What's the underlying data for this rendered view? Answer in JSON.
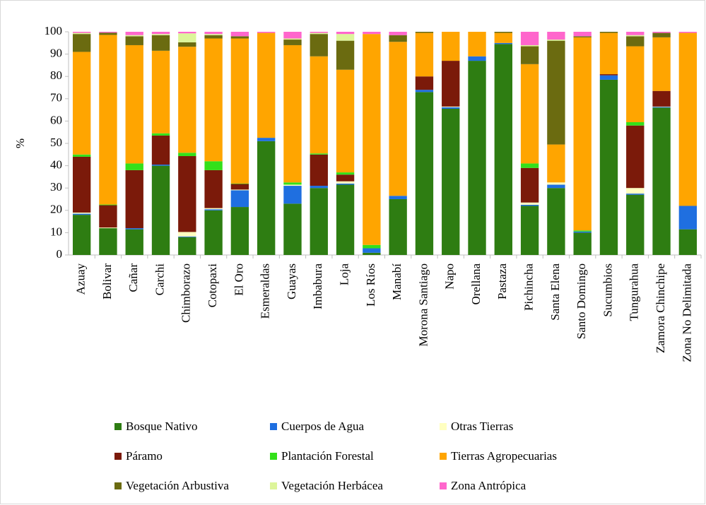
{
  "chart_data": {
    "type": "stacked-bar",
    "y_label": "%",
    "categories": [
      "Azuay",
      "Bolivar",
      "Cañar",
      "Carchi",
      "Chimborazo",
      "Cotopaxi",
      "El Oro",
      "Esmeraldas",
      "Guayas",
      "Imbabura",
      "Loja",
      "Los Ríos",
      "Manabí",
      "Morona Santiago",
      "Napo",
      "Orellana",
      "Pastaza",
      "Pichincha",
      "Santa Elena",
      "Santo Domingo",
      "Sucumbios",
      "Tungurahua",
      "Zamora Chinchipe",
      "Zona No Delimitada"
    ],
    "series": [
      {
        "name": "Bosque Nativo",
        "color": "#2e7d12",
        "values": [
          18,
          12,
          11.5,
          40,
          8,
          20,
          21.5,
          51,
          23,
          30,
          31.5,
          1,
          25,
          73,
          65.5,
          87,
          94.5,
          22,
          30,
          10,
          78.5,
          27,
          66,
          11.5
        ]
      },
      {
        "name": "Cuerpos de Agua",
        "color": "#1f6fe0",
        "values": [
          0.5,
          0,
          0.5,
          0.5,
          0.3,
          0.5,
          7.5,
          1.5,
          8,
          1,
          0.5,
          2,
          1.5,
          1,
          0.7,
          2,
          0.5,
          0.5,
          1.5,
          0.5,
          2,
          0.5,
          0.3,
          10.5
        ]
      },
      {
        "name": "Otras Tierras",
        "color": "#ffffc0",
        "values": [
          0.5,
          0.3,
          0,
          0,
          2,
          0.5,
          0.3,
          0,
          0.5,
          0,
          1,
          0,
          0,
          0,
          0.3,
          0,
          0,
          1,
          1,
          0,
          0,
          2.5,
          0.2,
          0
        ]
      },
      {
        "name": "Páramo",
        "color": "#7b1a0a",
        "values": [
          25,
          10,
          26,
          13,
          34,
          17,
          2.5,
          0,
          0,
          14,
          3,
          0,
          0,
          6,
          20.5,
          0,
          0,
          15.5,
          0,
          0,
          0.5,
          28,
          7,
          0
        ]
      },
      {
        "name": "Plantación Forestal",
        "color": "#33e01a",
        "values": [
          1,
          0.3,
          3,
          1,
          1.5,
          4,
          0.2,
          0,
          1,
          0.5,
          1,
          1.5,
          0,
          0,
          0,
          0,
          0,
          2,
          0,
          0.5,
          0,
          1.5,
          0,
          0
        ]
      },
      {
        "name": "Tierras Agropecuarias",
        "color": "#ffa500",
        "values": [
          46,
          76,
          53,
          37,
          47.5,
          55,
          65,
          47,
          61.5,
          43.5,
          46,
          94.5,
          69,
          19.5,
          13,
          11,
          4.5,
          44.5,
          17,
          86.5,
          18.5,
          34,
          24,
          77.5
        ]
      },
      {
        "name": "Vegetación Arbustiva",
        "color": "#6b6b10",
        "values": [
          8,
          1,
          4,
          7,
          2,
          1.5,
          1,
          0,
          2.5,
          10,
          13,
          0,
          3,
          0.5,
          0,
          0,
          0.5,
          8,
          46.5,
          0.5,
          0.5,
          4.5,
          2,
          0
        ]
      },
      {
        "name": "Vegetación Herbácea",
        "color": "#ddf59a",
        "values": [
          0.5,
          0,
          0.5,
          0.5,
          4,
          0.5,
          0,
          0,
          0.5,
          0.5,
          3,
          0,
          0,
          0,
          0,
          0,
          0,
          0.5,
          0.5,
          0,
          0,
          0.5,
          0,
          0
        ]
      },
      {
        "name": "Zona Antrópica",
        "color": "#ff66cc",
        "values": [
          0.5,
          0.4,
          1.5,
          1,
          0.7,
          1,
          2,
          0.5,
          3,
          0.5,
          1,
          1,
          1.5,
          0,
          0,
          0,
          0,
          6,
          3.5,
          2,
          0,
          1.5,
          0.5,
          0.5
        ]
      }
    ],
    "ylim": [
      0,
      100
    ],
    "yticks": [
      0,
      10,
      20,
      30,
      40,
      50,
      60,
      70,
      80,
      90,
      100
    ],
    "legend": "bottom"
  }
}
